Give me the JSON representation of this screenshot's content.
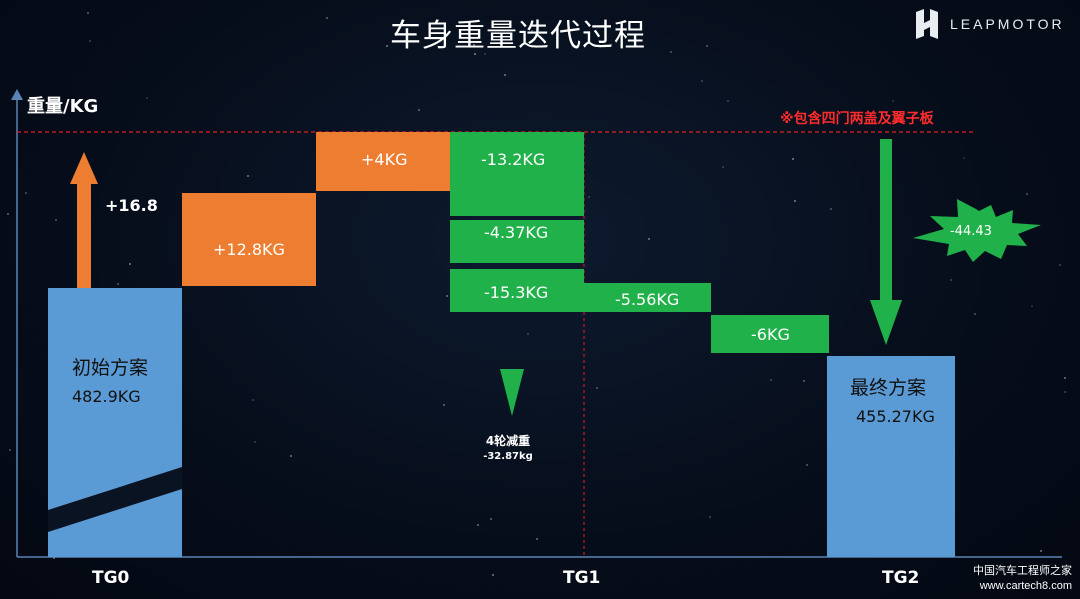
{
  "title": "车身重量迭代过程",
  "logo": {
    "text": "LEAPMOTOR"
  },
  "note": "※包含四门两盖及翼子板",
  "chart_data": {
    "type": "waterfall",
    "ylabel": "重量/KG",
    "x_labels": [
      "TG0",
      "TG1",
      "TG2"
    ],
    "start": {
      "name": "初始方案",
      "value_label": "482.9KG",
      "value": 482.9
    },
    "end": {
      "name": "最终方案",
      "value_label": "455.27KG",
      "value": 455.27
    },
    "increments": [
      {
        "label": "+16.8",
        "value": 16.8
      },
      {
        "label": "+12.8KG",
        "value": 12.8
      },
      {
        "label": "+4KG",
        "value": 4
      }
    ],
    "decrements": [
      {
        "label": "-13.2KG",
        "value": -13.2
      },
      {
        "label": "-4.37KG",
        "value": -4.37
      },
      {
        "label": "-15.3KG",
        "value": -15.3
      },
      {
        "label": "-5.56KG",
        "value": -5.56
      },
      {
        "label": "-6KG",
        "value": -6
      }
    ],
    "wheel_reduction": {
      "label": "4轮减重",
      "value_label": "-32.87kg"
    },
    "total_reduction": {
      "label": "-44.43",
      "value": -44.43
    },
    "colors": {
      "increase": "#ed7d31",
      "decrease": "#21b14a",
      "total": "#5b9bd5",
      "reference_line": "#e02020"
    }
  },
  "watermark": {
    "line1": "中国汽车工程师之家",
    "line2": "www.cartech8.com"
  }
}
